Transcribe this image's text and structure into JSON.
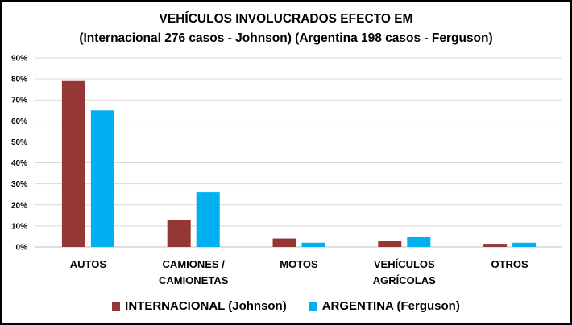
{
  "chart_data": {
    "type": "bar",
    "title": "VEHÍCULOS INVOLUCRADOS EFECTO EM",
    "subtitle": "(Internacional 276 casos - Johnson) (Argentina 198 casos - Ferguson)",
    "categories": [
      [
        "AUTOS"
      ],
      [
        "CAMIONES /",
        "CAMIONETAS"
      ],
      [
        "MOTOS"
      ],
      [
        "VEHÍCULOS",
        "AGRÍCOLAS"
      ],
      [
        "OTROS"
      ]
    ],
    "series": [
      {
        "name": "INTERNACIONAL (Johnson)",
        "color": "#953735",
        "values": [
          79,
          13,
          4,
          3,
          1.5
        ]
      },
      {
        "name": "ARGENTINA (Ferguson)",
        "color": "#00b0f0",
        "values": [
          65,
          26,
          2,
          5,
          2
        ]
      }
    ],
    "yticks": [
      "0%",
      "10%",
      "20%",
      "30%",
      "40%",
      "50%",
      "60%",
      "70%",
      "80%",
      "90%"
    ],
    "ylim": [
      0,
      90
    ],
    "grid": true,
    "legend_position": "bottom"
  }
}
